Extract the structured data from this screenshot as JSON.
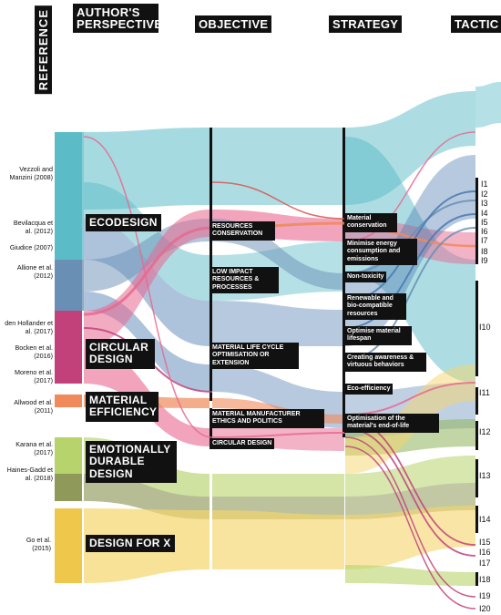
{
  "headers": {
    "reference": "REFERENCE",
    "perspective": "AUTHOR'S PERSPECTIVE",
    "objective": "OBJECTIVE",
    "strategy": "STRATEGY",
    "tactic": "TACTIC"
  },
  "references": [
    "Vezzoli and Manzini (2008)",
    "Bevilacqua et al. (2012)",
    "Giudice (2007)",
    "Allione et al. (2012)",
    "den Hollander et al. (2017)",
    "Bocken et al. (2016)",
    "Moreno et al. (2017)",
    "Allwood et al. (2011)",
    "Karana et al. (2017)",
    "Haines-Gadd et al. (2018)",
    "Go et al. (2015)"
  ],
  "perspectives": [
    "ECODESIGN",
    "CIRCULAR DESIGN",
    "MATERIAL EFFICIENCY",
    "EMOTIONALLY DURABLE DESIGN",
    "DESIGN FOR X"
  ],
  "objectives": [
    "RESOURCES CONSERVATION",
    "LOW IMPACT RESOURCES & PROCESSES",
    "MATERIAL LIFE CYCLE OPTIMISATION OR EXTENSION",
    "MATERIAL MANUFACTURER ETHICS AND POLITICS",
    "CIRCULAR DESIGN"
  ],
  "strategies": [
    "Material conservation",
    "Minimise energy consumption and emissions",
    "Non-toxicity",
    "Renewable and bio-compatible resources",
    "Optimise material lifespan",
    "Creating awareness & virtuous behaviors",
    "Eco-efficiency",
    "Optimisation of the material's end-of-life"
  ],
  "tactics": [
    "I1",
    "I2",
    "I3",
    "I4",
    "I5",
    "I6",
    "I7",
    "I8",
    "I9",
    "I10",
    "I11",
    "I12",
    "I13",
    "I14",
    "I15",
    "I16",
    "I17",
    "I18",
    "I19",
    "I20"
  ],
  "colors": {
    "teal": "#5bbcc8",
    "steel": "#6a8fb5",
    "blue": "#4a78b0",
    "pink": "#e8688f",
    "magenta": "#c2417a",
    "orange": "#f08a5a",
    "yellow": "#f5d66c",
    "olive": "#8f9a5a",
    "lightgreen": "#b7d36b",
    "green": "#8fb35a",
    "gold": "#efc74a"
  }
}
